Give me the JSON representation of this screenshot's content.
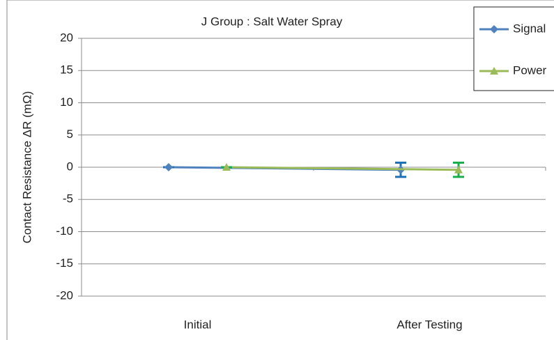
{
  "chart_data": {
    "type": "line",
    "title": "J Group : Salt Water Spray",
    "y_label": "Contact Resistance ΔR (mΩ)",
    "categories": [
      "Initial",
      "After Testing"
    ],
    "series": [
      {
        "name": "Signal",
        "color": "#4f81bd",
        "marker": "diamond",
        "values": [
          0,
          -0.4
        ],
        "errors": [
          0,
          1.1
        ],
        "error_color": "#1f6fb5"
      },
      {
        "name": "Power",
        "color": "#9bbb59",
        "marker": "triangle",
        "values": [
          0,
          -0.4
        ],
        "errors": [
          0,
          1.1
        ],
        "error_color": "#1aad4c"
      }
    ],
    "ylim": [
      -20,
      20
    ],
    "yticks": [
      -20,
      -15,
      -10,
      -5,
      0,
      5,
      10,
      15,
      20
    ],
    "grid": true,
    "legend": "top-right"
  }
}
